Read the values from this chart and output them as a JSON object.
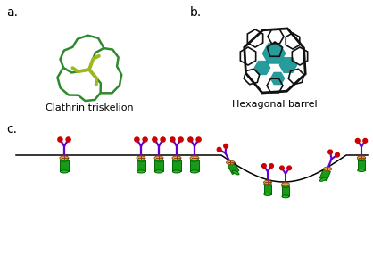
{
  "fig_width": 4.18,
  "fig_height": 2.86,
  "dpi": 100,
  "bg_color": "#ffffff",
  "label_a": "a.",
  "label_b": "b.",
  "label_c": "c.",
  "label_fontsize": 10,
  "caption_a": "Clathrin triskelion",
  "caption_b": "Hexagonal barrel",
  "caption_fontsize": 8,
  "green_dark": "#2d8a2d",
  "green_light": "#9ab820",
  "teal": "#008B8B",
  "black": "#111111",
  "purple": "#6600cc",
  "red": "#cc0000",
  "orange": "#e8a040",
  "green_cylinder": "#1a9a1a",
  "dark_green_cylinder": "#006600"
}
